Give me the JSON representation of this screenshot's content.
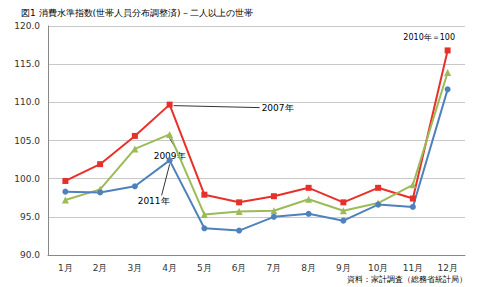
{
  "chart_data": {
    "type": "line",
    "title": "図1 消費水準指数(世帯人員分布調整済)－二人以上の世帯",
    "note": "2010年＝100",
    "source": "資料：家計調査（総務省統計局）",
    "categories": [
      "1月",
      "2月",
      "3月",
      "4月",
      "5月",
      "6月",
      "7月",
      "8月",
      "9月",
      "10月",
      "11月",
      "12月"
    ],
    "series": [
      {
        "name": "2007年",
        "color": "#e8302a",
        "marker": "square",
        "line_style": "solid",
        "values": [
          99.7,
          101.9,
          105.6,
          109.7,
          97.9,
          96.9,
          97.7,
          98.8,
          96.9,
          98.8,
          97.4,
          116.8
        ]
      },
      {
        "name": "2009年",
        "color": "#9bbb59",
        "marker": "triangle",
        "line_style": "solid",
        "values": [
          97.2,
          98.6,
          103.9,
          105.8,
          95.3,
          95.7,
          95.8,
          97.3,
          95.8,
          96.8,
          99.2,
          113.9
        ]
      },
      {
        "name": "2011年",
        "color": "#4f81bd",
        "marker": "circle",
        "line_style": "solid",
        "values": [
          98.3,
          98.2,
          99.0,
          102.4,
          93.5,
          93.2,
          95.0,
          95.4,
          94.5,
          96.6,
          96.3,
          111.7
        ]
      }
    ],
    "ylim": [
      90,
      120
    ],
    "yticks": [
      {
        "value": 90,
        "label": "90.0"
      },
      {
        "value": 95,
        "label": "95.0"
      },
      {
        "value": 100,
        "label": "100.0"
      },
      {
        "value": 105,
        "label": "105.0"
      },
      {
        "value": 110,
        "label": "110.0"
      },
      {
        "value": 115,
        "label": "115.0"
      },
      {
        "value": 120,
        "label": "120.0"
      }
    ],
    "grid": true
  }
}
